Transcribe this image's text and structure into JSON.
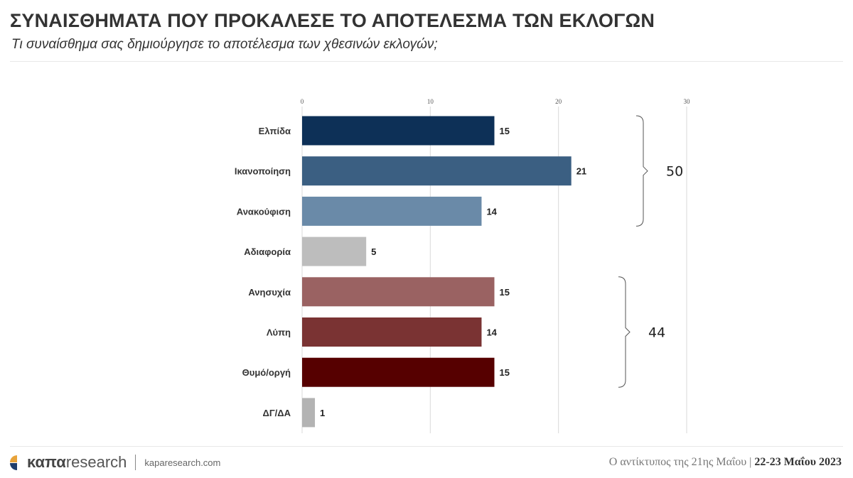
{
  "title": "ΣΥΝΑΙΣΘΗΜΑΤΑ ΠΟΥ ΠΡΟΚΑΛΕΣΕ ΤΟ ΑΠΟΤΕΛΕΣΜΑ ΤΩΝ ΕΚΛΟΓΩΝ",
  "subtitle": "Τι συναίσθημα σας δημιούργησε το αποτέλεσμα των χθεσινών εκλογών;",
  "chart_data": {
    "type": "bar",
    "orientation": "horizontal",
    "categories": [
      "Ελπίδα",
      "Ικανοποίηση",
      "Ανακούφιση",
      "Αδιαφορία",
      "Ανησυχία",
      "Λύπη",
      "Θυμό/οργή",
      "ΔΓ/ΔΑ"
    ],
    "values": [
      15,
      21,
      14,
      5,
      15,
      14,
      15,
      1
    ],
    "colors": [
      "#0d3057",
      "#3b5f82",
      "#6a8aa8",
      "#bdbdbd",
      "#9a6262",
      "#7a3333",
      "#560000",
      "#b3b3b3"
    ],
    "xlim": [
      0,
      30
    ],
    "xticks": [
      "0",
      "10",
      "20",
      "30"
    ],
    "grid": true,
    "groups": [
      {
        "label": "50",
        "from": "Ελπίδα",
        "to": "Ανακούφιση"
      },
      {
        "label": "44",
        "from": "Ανησυχία",
        "to": "Θυμό/οργή"
      }
    ]
  },
  "footer": {
    "brand_bold": "καπα",
    "brand_light": "research",
    "site": "kaparesearch.com",
    "note": "Ο αντίκτυπος της 21ης Μαΐου |",
    "date": "22-23 Μαΐου 2023"
  }
}
